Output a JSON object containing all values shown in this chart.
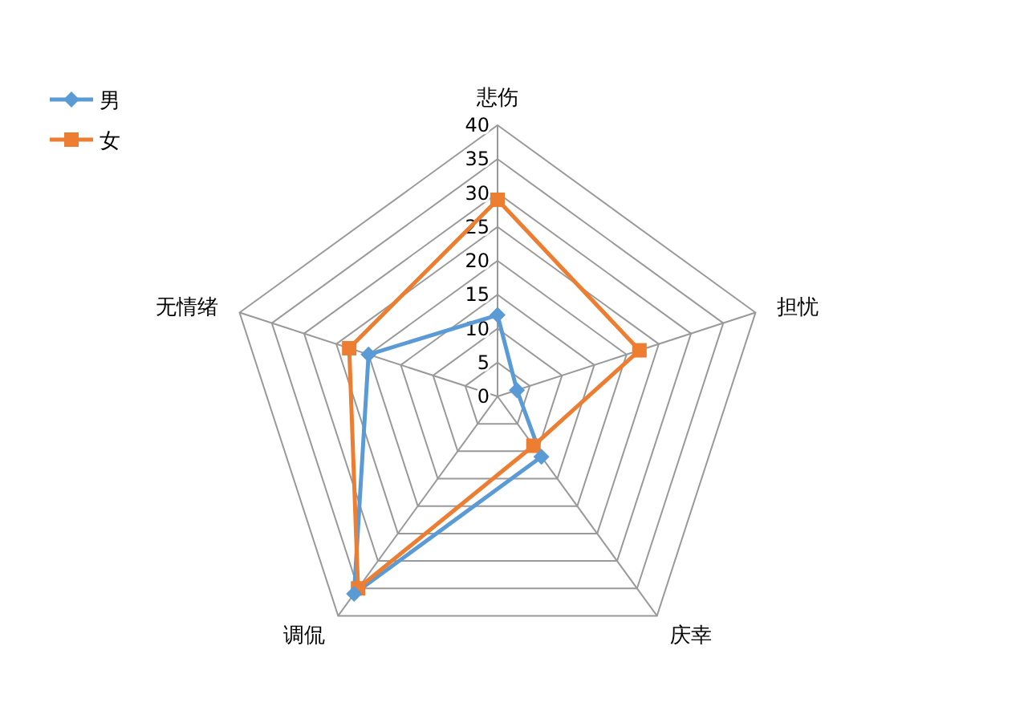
{
  "chart_data": {
    "type": "radar",
    "categories": [
      "悲伤",
      "担忧",
      "庆幸",
      "调侃",
      "无情绪"
    ],
    "series": [
      {
        "name": "男",
        "color": "#5b9bd5",
        "marker": "diamond",
        "values": [
          12,
          3,
          11,
          36,
          20
        ]
      },
      {
        "name": "女",
        "color": "#ed7d31",
        "marker": "square",
        "values": [
          29,
          22,
          9,
          35,
          23
        ]
      }
    ],
    "ylim": [
      0,
      40
    ],
    "yticks": [
      0,
      5,
      10,
      15,
      20,
      25,
      30,
      35,
      40
    ],
    "grid": true,
    "legend": "top left"
  }
}
